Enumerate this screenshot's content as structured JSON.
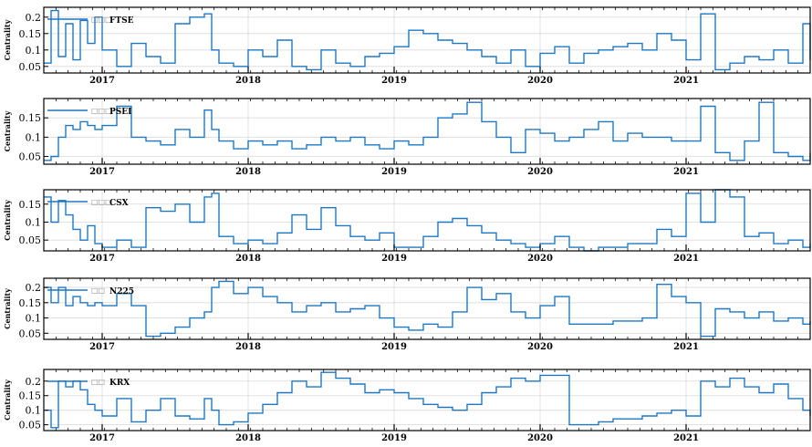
{
  "chart_data": [
    {
      "type": "line",
      "legend": "FTSE",
      "legend_prefix": "□□□",
      "ylabel": "Centrality",
      "yticks": [
        0.05,
        0.1,
        0.15,
        0.2
      ],
      "ytick_labels": [
        "0.05",
        "0.1",
        "0.15",
        "0.2"
      ],
      "ylim": [
        0.03,
        0.23
      ],
      "xlim": [
        2016.6,
        2021.85
      ],
      "xticks": [
        2017,
        2018,
        2019,
        2020,
        2021
      ],
      "xtick_labels": [
        "2017",
        "2018",
        "2019",
        "2020",
        "2021"
      ],
      "grid": true,
      "legend_position": "top-left",
      "color": "#1f77c4",
      "x": [
        2016.6,
        2016.65,
        2016.7,
        2016.75,
        2016.8,
        2016.85,
        2016.9,
        2016.95,
        2017.0,
        2017.1,
        2017.2,
        2017.3,
        2017.4,
        2017.5,
        2017.6,
        2017.7,
        2017.75,
        2017.8,
        2017.9,
        2018.0,
        2018.1,
        2018.2,
        2018.3,
        2018.4,
        2018.5,
        2018.6,
        2018.7,
        2018.8,
        2018.9,
        2019.0,
        2019.1,
        2019.2,
        2019.3,
        2019.4,
        2019.5,
        2019.6,
        2019.7,
        2019.8,
        2019.9,
        2020.0,
        2020.1,
        2020.2,
        2020.3,
        2020.4,
        2020.5,
        2020.6,
        2020.7,
        2020.8,
        2020.9,
        2021.0,
        2021.1,
        2021.2,
        2021.3,
        2021.4,
        2021.5,
        2021.6,
        2021.7,
        2021.8,
        2021.85
      ],
      "values": [
        0.06,
        0.22,
        0.08,
        0.18,
        0.07,
        0.19,
        0.12,
        0.2,
        0.1,
        0.05,
        0.12,
        0.08,
        0.06,
        0.18,
        0.2,
        0.21,
        0.1,
        0.06,
        0.05,
        0.1,
        0.08,
        0.13,
        0.05,
        0.04,
        0.1,
        0.06,
        0.05,
        0.08,
        0.09,
        0.11,
        0.16,
        0.15,
        0.13,
        0.12,
        0.1,
        0.08,
        0.06,
        0.1,
        0.05,
        0.09,
        0.11,
        0.06,
        0.09,
        0.1,
        0.11,
        0.12,
        0.1,
        0.15,
        0.13,
        0.07,
        0.21,
        0.04,
        0.06,
        0.08,
        0.07,
        0.1,
        0.06,
        0.18,
        0.07
      ]
    },
    {
      "type": "line",
      "legend": "PSEI",
      "legend_prefix": "□□□",
      "ylabel": "Centrality",
      "yticks": [
        0.05,
        0.1,
        0.15
      ],
      "ytick_labels": [
        "0.05",
        "0.1",
        "0.15"
      ],
      "ylim": [
        0.03,
        0.2
      ],
      "xlim": [
        2016.6,
        2021.85
      ],
      "xticks": [
        2017,
        2018,
        2019,
        2020,
        2021
      ],
      "xtick_labels": [
        "2017",
        "2018",
        "2019",
        "2020",
        "2021"
      ],
      "grid": true,
      "legend_position": "top-left",
      "color": "#1f77c4",
      "x": [
        2016.6,
        2016.65,
        2016.7,
        2016.75,
        2016.8,
        2016.85,
        2016.9,
        2016.95,
        2017.0,
        2017.1,
        2017.2,
        2017.3,
        2017.4,
        2017.5,
        2017.6,
        2017.7,
        2017.75,
        2017.8,
        2017.9,
        2018.0,
        2018.1,
        2018.2,
        2018.3,
        2018.4,
        2018.5,
        2018.6,
        2018.7,
        2018.8,
        2018.9,
        2019.0,
        2019.1,
        2019.2,
        2019.3,
        2019.4,
        2019.5,
        2019.6,
        2019.7,
        2019.8,
        2019.9,
        2020.0,
        2020.1,
        2020.2,
        2020.3,
        2020.4,
        2020.5,
        2020.6,
        2020.7,
        2020.8,
        2020.9,
        2021.0,
        2021.1,
        2021.2,
        2021.3,
        2021.4,
        2021.5,
        2021.6,
        2021.7,
        2021.8,
        2021.85
      ],
      "values": [
        0.04,
        0.05,
        0.1,
        0.13,
        0.12,
        0.14,
        0.13,
        0.12,
        0.13,
        0.18,
        0.1,
        0.09,
        0.08,
        0.12,
        0.1,
        0.17,
        0.12,
        0.09,
        0.07,
        0.09,
        0.08,
        0.09,
        0.07,
        0.08,
        0.1,
        0.09,
        0.1,
        0.08,
        0.07,
        0.09,
        0.08,
        0.1,
        0.15,
        0.16,
        0.19,
        0.14,
        0.1,
        0.06,
        0.12,
        0.11,
        0.09,
        0.1,
        0.12,
        0.14,
        0.09,
        0.11,
        0.1,
        0.1,
        0.09,
        0.09,
        0.18,
        0.06,
        0.04,
        0.09,
        0.19,
        0.06,
        0.05,
        0.04,
        0.06
      ]
    },
    {
      "type": "line",
      "legend": "CSX",
      "legend_prefix": "□□□",
      "ylabel": "Centrality",
      "yticks": [
        0.05,
        0.1,
        0.15
      ],
      "ytick_labels": [
        "0.05",
        "0.1",
        "0.15"
      ],
      "ylim": [
        0.02,
        0.19
      ],
      "xlim": [
        2016.6,
        2021.85
      ],
      "xticks": [
        2017,
        2018,
        2019,
        2020,
        2021
      ],
      "xtick_labels": [
        "2017",
        "2018",
        "2019",
        "2020",
        "2021"
      ],
      "grid": true,
      "legend_position": "top-left",
      "color": "#1f77c4",
      "x": [
        2016.6,
        2016.65,
        2016.7,
        2016.75,
        2016.8,
        2016.85,
        2016.9,
        2016.95,
        2017.0,
        2017.1,
        2017.2,
        2017.3,
        2017.4,
        2017.5,
        2017.6,
        2017.7,
        2017.75,
        2017.8,
        2017.9,
        2018.0,
        2018.1,
        2018.2,
        2018.3,
        2018.4,
        2018.5,
        2018.6,
        2018.7,
        2018.8,
        2018.9,
        2019.0,
        2019.1,
        2019.2,
        2019.3,
        2019.4,
        2019.5,
        2019.6,
        2019.7,
        2019.8,
        2019.9,
        2020.0,
        2020.1,
        2020.2,
        2020.3,
        2020.4,
        2020.5,
        2020.6,
        2020.7,
        2020.8,
        2020.9,
        2021.0,
        2021.1,
        2021.2,
        2021.3,
        2021.4,
        2021.5,
        2021.6,
        2021.7,
        2021.8,
        2021.85
      ],
      "values": [
        0.17,
        0.1,
        0.16,
        0.12,
        0.08,
        0.05,
        0.09,
        0.04,
        0.03,
        0.05,
        0.03,
        0.14,
        0.13,
        0.15,
        0.1,
        0.17,
        0.18,
        0.06,
        0.04,
        0.05,
        0.04,
        0.07,
        0.12,
        0.08,
        0.14,
        0.09,
        0.06,
        0.05,
        0.07,
        0.03,
        0.03,
        0.06,
        0.1,
        0.11,
        0.09,
        0.07,
        0.05,
        0.04,
        0.03,
        0.04,
        0.06,
        0.03,
        0.02,
        0.03,
        0.03,
        0.04,
        0.04,
        0.08,
        0.06,
        0.18,
        0.1,
        0.19,
        0.17,
        0.06,
        0.07,
        0.04,
        0.05,
        0.03,
        0.04
      ]
    },
    {
      "type": "line",
      "legend": "N225",
      "legend_prefix": "□□",
      "ylabel": "Centrality",
      "yticks": [
        0.05,
        0.1,
        0.15,
        0.2
      ],
      "ytick_labels": [
        "0.05",
        "0.1",
        "0.15",
        "0.2"
      ],
      "ylim": [
        0.03,
        0.23
      ],
      "xlim": [
        2016.6,
        2021.85
      ],
      "xticks": [
        2017,
        2018,
        2019,
        2020,
        2021
      ],
      "xtick_labels": [
        "2017",
        "2018",
        "2019",
        "2020",
        "2021"
      ],
      "grid": true,
      "legend_position": "top-left",
      "color": "#1f77c4",
      "x": [
        2016.6,
        2016.65,
        2016.7,
        2016.75,
        2016.8,
        2016.85,
        2016.9,
        2016.95,
        2017.0,
        2017.1,
        2017.2,
        2017.3,
        2017.4,
        2017.5,
        2017.6,
        2017.7,
        2017.75,
        2017.8,
        2017.9,
        2018.0,
        2018.1,
        2018.2,
        2018.3,
        2018.4,
        2018.5,
        2018.6,
        2018.7,
        2018.8,
        2018.9,
        2019.0,
        2019.1,
        2019.2,
        2019.3,
        2019.4,
        2019.5,
        2019.6,
        2019.7,
        2019.8,
        2019.9,
        2020.0,
        2020.1,
        2020.2,
        2020.3,
        2020.4,
        2020.5,
        2020.6,
        2020.7,
        2020.8,
        2020.9,
        2021.0,
        2021.1,
        2021.2,
        2021.3,
        2021.4,
        2021.5,
        2021.6,
        2021.7,
        2021.8,
        2021.85
      ],
      "values": [
        0.2,
        0.15,
        0.2,
        0.14,
        0.17,
        0.15,
        0.14,
        0.15,
        0.14,
        0.18,
        0.14,
        0.04,
        0.05,
        0.07,
        0.1,
        0.12,
        0.2,
        0.22,
        0.18,
        0.2,
        0.17,
        0.15,
        0.12,
        0.14,
        0.15,
        0.12,
        0.13,
        0.14,
        0.1,
        0.07,
        0.06,
        0.08,
        0.07,
        0.12,
        0.2,
        0.16,
        0.18,
        0.12,
        0.1,
        0.14,
        0.17,
        0.08,
        0.08,
        0.08,
        0.09,
        0.09,
        0.1,
        0.21,
        0.17,
        0.15,
        0.04,
        0.13,
        0.12,
        0.1,
        0.12,
        0.09,
        0.1,
        0.08,
        0.09
      ]
    },
    {
      "type": "line",
      "legend": "KRX",
      "legend_prefix": "□□",
      "ylabel": "Centrality",
      "yticks": [
        0.05,
        0.1,
        0.15,
        0.2
      ],
      "ytick_labels": [
        "0.05",
        "0.1",
        "0.15",
        "0.2"
      ],
      "ylim": [
        0.03,
        0.24
      ],
      "xlim": [
        2016.6,
        2021.85
      ],
      "xticks": [
        2017,
        2018,
        2019,
        2020,
        2021
      ],
      "xtick_labels": [
        "2017",
        "2018",
        "2019",
        "2020",
        "2021"
      ],
      "grid": true,
      "legend_position": "top-left",
      "color": "#1f77c4",
      "x": [
        2016.6,
        2016.65,
        2016.7,
        2016.75,
        2016.8,
        2016.85,
        2016.9,
        2016.95,
        2017.0,
        2017.1,
        2017.2,
        2017.3,
        2017.4,
        2017.5,
        2017.6,
        2017.7,
        2017.75,
        2017.8,
        2017.9,
        2018.0,
        2018.1,
        2018.2,
        2018.3,
        2018.4,
        2018.5,
        2018.6,
        2018.7,
        2018.8,
        2018.9,
        2019.0,
        2019.1,
        2019.2,
        2019.3,
        2019.4,
        2019.5,
        2019.6,
        2019.7,
        2019.8,
        2019.9,
        2020.0,
        2020.1,
        2020.2,
        2020.3,
        2020.4,
        2020.5,
        2020.6,
        2020.7,
        2020.8,
        2020.9,
        2021.0,
        2021.1,
        2021.2,
        2021.3,
        2021.4,
        2021.5,
        2021.6,
        2021.7,
        2021.8,
        2021.85
      ],
      "values": [
        0.1,
        0.04,
        0.2,
        0.18,
        0.2,
        0.17,
        0.12,
        0.1,
        0.08,
        0.14,
        0.06,
        0.1,
        0.14,
        0.08,
        0.07,
        0.14,
        0.1,
        0.05,
        0.06,
        0.09,
        0.12,
        0.16,
        0.2,
        0.18,
        0.23,
        0.21,
        0.19,
        0.16,
        0.17,
        0.16,
        0.14,
        0.12,
        0.11,
        0.1,
        0.12,
        0.16,
        0.18,
        0.21,
        0.2,
        0.22,
        0.22,
        0.05,
        0.05,
        0.06,
        0.07,
        0.07,
        0.08,
        0.09,
        0.1,
        0.08,
        0.2,
        0.18,
        0.21,
        0.18,
        0.16,
        0.19,
        0.14,
        0.1,
        0.08
      ]
    }
  ]
}
